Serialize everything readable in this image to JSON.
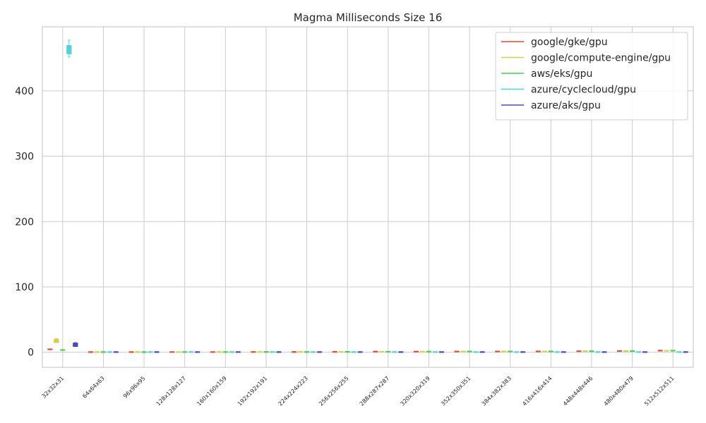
{
  "chart_data": {
    "type": "box",
    "title": "Magma Milliseconds Size 16",
    "xlabel": "",
    "ylabel": "",
    "ylim": [
      -23,
      498
    ],
    "yticks": [
      0,
      100,
      200,
      300,
      400
    ],
    "grid": true,
    "legend_position": "top-right",
    "categories": [
      "32x32x31",
      "64x64x63",
      "96x96x95",
      "128x128x127",
      "160x160x159",
      "192x192x191",
      "224x224x223",
      "256x256x255",
      "288x287x287",
      "320x320x319",
      "352x350x351",
      "384x382x383",
      "416x416x414",
      "448x448x446",
      "480x480x479",
      "512x512x511"
    ],
    "series": [
      {
        "name": "google/gke/gpu",
        "color": "#e8473c",
        "values": [
          4.5,
          0.3,
          0.3,
          0.4,
          0.4,
          0.5,
          0.5,
          0.6,
          1.0,
          1.0,
          1.1,
          1.2,
          1.3,
          1.6,
          1.9,
          2.5
        ]
      },
      {
        "name": "google/compute-engine/gpu",
        "color": "#cfd43f",
        "values": [
          17.5,
          0.3,
          0.3,
          0.4,
          0.4,
          0.4,
          0.5,
          0.5,
          0.8,
          0.9,
          1.0,
          1.1,
          1.2,
          1.5,
          1.8,
          2.3
        ]
      },
      {
        "name": "aws/eks/gpu",
        "color": "#43d14f",
        "values": [
          3.5,
          0.3,
          0.3,
          0.4,
          0.4,
          0.5,
          0.5,
          0.6,
          0.8,
          1.0,
          1.1,
          1.2,
          1.3,
          1.6,
          1.9,
          2.5
        ]
      },
      {
        "name": "azure/cyclecloud/gpu",
        "color": "#4fd6d4",
        "values": [
          463,
          0.3,
          0.3,
          0.3,
          0.3,
          0.3,
          0.3,
          0.3,
          0.3,
          0.3,
          0.3,
          0.3,
          0.3,
          0.3,
          0.3,
          0.3
        ]
      },
      {
        "name": "azure/aks/gpu",
        "color": "#4f46c8",
        "values": [
          11.5,
          0.3,
          0.3,
          0.3,
          0.3,
          0.3,
          0.3,
          0.3,
          0.3,
          0.3,
          0.3,
          0.3,
          0.3,
          0.3,
          0.3,
          0.3
        ]
      }
    ]
  }
}
